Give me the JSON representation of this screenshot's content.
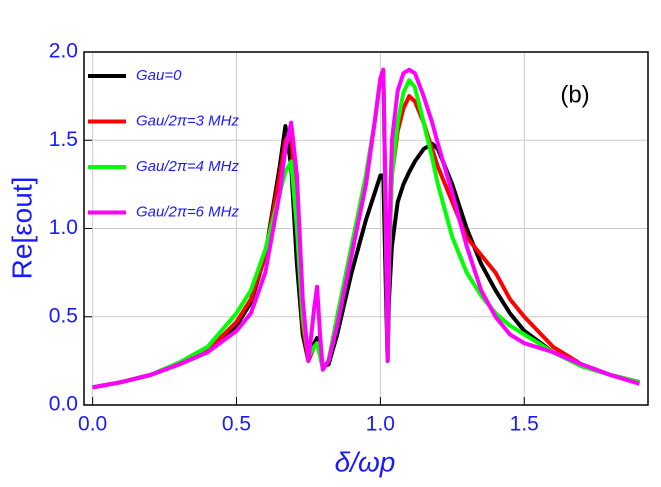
{
  "chart_data": {
    "type": "line",
    "annotation": "(b)",
    "xlabel": "δ/ωp",
    "ylabel": "Re[εout]",
    "x": [
      0,
      0.1,
      0.2,
      0.3,
      0.4,
      0.5,
      0.55,
      0.6,
      0.65,
      0.67,
      0.69,
      0.71,
      0.73,
      0.75,
      0.77,
      0.78,
      0.79,
      0.8,
      0.82,
      0.85,
      0.9,
      0.95,
      0.98,
      1.0,
      1.01,
      1.02,
      1.025,
      1.03,
      1.04,
      1.06,
      1.08,
      1.1,
      1.12,
      1.15,
      1.18,
      1.2,
      1.25,
      1.3,
      1.35,
      1.4,
      1.45,
      1.5,
      1.6,
      1.7,
      1.8,
      1.9
    ],
    "series": [
      {
        "name": "Gau=0",
        "color": "#000000",
        "values": [
          0.1,
          0.13,
          0.17,
          0.23,
          0.3,
          0.45,
          0.58,
          0.85,
          1.35,
          1.58,
          1.35,
          0.8,
          0.4,
          0.25,
          0.35,
          0.38,
          0.3,
          0.22,
          0.23,
          0.4,
          0.75,
          1.05,
          1.2,
          1.3,
          1.3,
          0.6,
          0.25,
          0.6,
          0.9,
          1.15,
          1.25,
          1.32,
          1.38,
          1.45,
          1.48,
          1.45,
          1.25,
          1.0,
          0.8,
          0.65,
          0.52,
          0.42,
          0.3,
          0.22,
          0.17,
          0.13
        ]
      },
      {
        "name": "Gau/2π=3 MHz",
        "color": "#ff0000",
        "values": [
          0.1,
          0.13,
          0.17,
          0.23,
          0.31,
          0.47,
          0.6,
          0.85,
          1.3,
          1.5,
          1.55,
          1.0,
          0.45,
          0.25,
          0.33,
          0.35,
          0.28,
          0.21,
          0.25,
          0.5,
          0.9,
          1.3,
          1.6,
          1.85,
          1.9,
          0.9,
          0.25,
          0.8,
          1.3,
          1.55,
          1.68,
          1.75,
          1.72,
          1.6,
          1.45,
          1.35,
          1.15,
          0.95,
          0.85,
          0.75,
          0.6,
          0.5,
          0.33,
          0.23,
          0.17,
          0.13
        ]
      },
      {
        "name": "Gau/2π=4 MHz",
        "color": "#00ff00",
        "values": [
          0.1,
          0.13,
          0.17,
          0.24,
          0.33,
          0.52,
          0.65,
          0.88,
          1.2,
          1.32,
          1.38,
          1.0,
          0.5,
          0.27,
          0.33,
          0.35,
          0.28,
          0.21,
          0.25,
          0.5,
          0.9,
          1.3,
          1.6,
          1.85,
          1.9,
          0.9,
          0.25,
          0.8,
          1.3,
          1.6,
          1.77,
          1.84,
          1.8,
          1.6,
          1.4,
          1.25,
          0.95,
          0.75,
          0.62,
          0.52,
          0.45,
          0.4,
          0.3,
          0.22,
          0.17,
          0.13
        ]
      },
      {
        "name": "Gau/2π=6 MHz",
        "color": "#ff00ff",
        "values": [
          0.1,
          0.13,
          0.17,
          0.23,
          0.3,
          0.42,
          0.52,
          0.75,
          1.2,
          1.45,
          1.6,
          1.3,
          0.6,
          0.25,
          0.55,
          0.67,
          0.4,
          0.2,
          0.25,
          0.45,
          0.85,
          1.25,
          1.6,
          1.85,
          1.9,
          1.0,
          0.25,
          0.9,
          1.5,
          1.78,
          1.88,
          1.9,
          1.88,
          1.75,
          1.6,
          1.48,
          1.2,
          0.9,
          0.65,
          0.5,
          0.4,
          0.35,
          0.3,
          0.23,
          0.17,
          0.12
        ]
      }
    ],
    "xlim": [
      -0.03,
      1.93
    ],
    "ylim": [
      0,
      2
    ],
    "xticks": [
      {
        "value": 0,
        "label": "0.0"
      },
      0.5,
      {
        "value": 1,
        "label": "1.0"
      },
      1.5
    ],
    "yticks": [
      {
        "value": 0,
        "label": "0.0"
      },
      0.5,
      {
        "value": 1,
        "label": "1.0"
      },
      1.5,
      {
        "value": 2,
        "label": "2.0"
      }
    ],
    "grid": true,
    "legend": "upper-left"
  }
}
